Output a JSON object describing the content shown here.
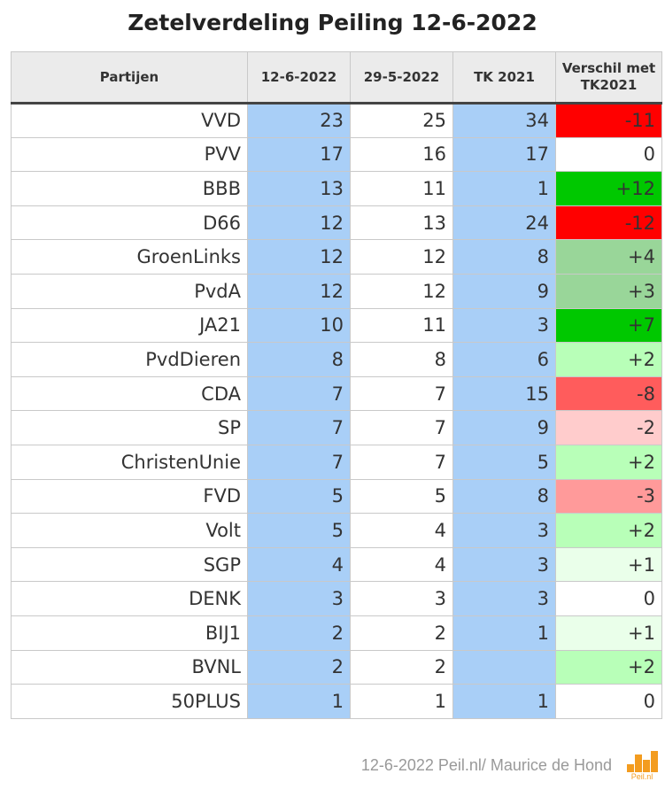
{
  "title": "Zetelverdeling Peiling 12-6-2022",
  "chart_data": {
    "type": "table",
    "title": "Zetelverdeling Peiling 12-6-2022",
    "columns": [
      "Partijen",
      "12-6-2022",
      "29-5-2022",
      "TK 2021",
      "Verschil met TK2021"
    ],
    "rows": [
      {
        "party": "VVD",
        "current": "23",
        "previous": "25",
        "tk2021": "34",
        "diff": "-11"
      },
      {
        "party": "PVV",
        "current": "17",
        "previous": "16",
        "tk2021": "17",
        "diff": "0"
      },
      {
        "party": "BBB",
        "current": "13",
        "previous": "11",
        "tk2021": "1",
        "diff": "+12"
      },
      {
        "party": "D66",
        "current": "12",
        "previous": "13",
        "tk2021": "24",
        "diff": "-12"
      },
      {
        "party": "GroenLinks",
        "current": "12",
        "previous": "12",
        "tk2021": "8",
        "diff": "+4"
      },
      {
        "party": "PvdA",
        "current": "12",
        "previous": "12",
        "tk2021": "9",
        "diff": "+3"
      },
      {
        "party": "JA21",
        "current": "10",
        "previous": "11",
        "tk2021": "3",
        "diff": "+7"
      },
      {
        "party": "PvdDieren",
        "current": "8",
        "previous": "8",
        "tk2021": "6",
        "diff": "+2"
      },
      {
        "party": "CDA",
        "current": "7",
        "previous": "7",
        "tk2021": "15",
        "diff": "-8"
      },
      {
        "party": "SP",
        "current": "7",
        "previous": "7",
        "tk2021": "9",
        "diff": "-2"
      },
      {
        "party": "ChristenUnie",
        "current": "7",
        "previous": "7",
        "tk2021": "5",
        "diff": "+2"
      },
      {
        "party": "FVD",
        "current": "5",
        "previous": "5",
        "tk2021": "8",
        "diff": "-3"
      },
      {
        "party": "Volt",
        "current": "5",
        "previous": "4",
        "tk2021": "3",
        "diff": "+2"
      },
      {
        "party": "SGP",
        "current": "4",
        "previous": "4",
        "tk2021": "3",
        "diff": "+1"
      },
      {
        "party": "DENK",
        "current": "3",
        "previous": "3",
        "tk2021": "3",
        "diff": "0"
      },
      {
        "party": "BIJ1",
        "current": "2",
        "previous": "2",
        "tk2021": "1",
        "diff": "+1"
      },
      {
        "party": "BVNL",
        "current": "2",
        "previous": "2",
        "tk2021": "",
        "diff": "+2"
      },
      {
        "party": "50PLUS",
        "current": "1",
        "previous": "1",
        "tk2021": "1",
        "diff": "0"
      }
    ]
  },
  "colors": {
    "blue_column": "#a9cff7",
    "header_bg": "#ebebeb",
    "strong_red": "#ff0000",
    "mid_red": "#ff5c5c",
    "light_red": "#ff9a9a",
    "pale_red": "#ffcccc",
    "strong_green": "#00c800",
    "mid_green": "#99d699",
    "light_green": "#b8ffb8",
    "pale_green": "#eaffea",
    "neutral": "#ffffff",
    "logo_orange": "#f39c1f"
  },
  "footer": {
    "credit": "12-6-2022 Peil.nl/ Maurice de Hond",
    "logo_text": "Peil.nl",
    "logo_icon": "bar-chart-logo-icon"
  }
}
